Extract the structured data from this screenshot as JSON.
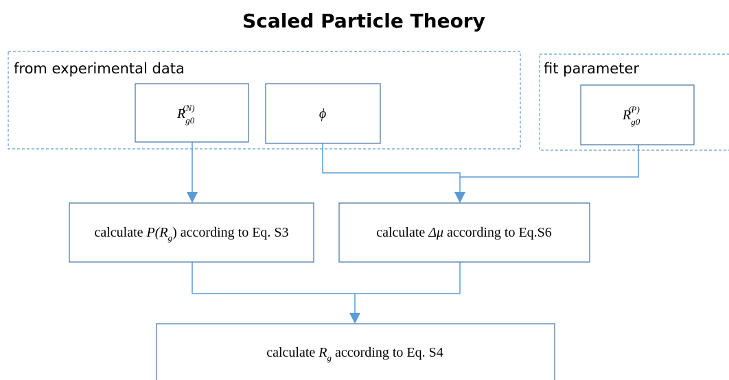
{
  "title": "Scaled Particle Theory",
  "groups": [
    {
      "label": "from experimental data"
    },
    {
      "label": "fit parameter"
    }
  ],
  "nodes": [
    {
      "base": "R",
      "sub": "g0",
      "sup": "(N)"
    },
    {
      "math": "ϕ"
    },
    {
      "base": "R",
      "sub": "g0",
      "sup": "(P)"
    },
    {
      "before": "calculate ",
      "math": "P(R",
      "sub": "g",
      "after": ") according to Eq. S3"
    },
    {
      "before": "calculate ",
      "math": "Δμ",
      "after": " according to Eq.S6"
    },
    {
      "before": "calculate ",
      "math": "R",
      "sub": "g",
      "after": " according to Eq. S4"
    }
  ]
}
